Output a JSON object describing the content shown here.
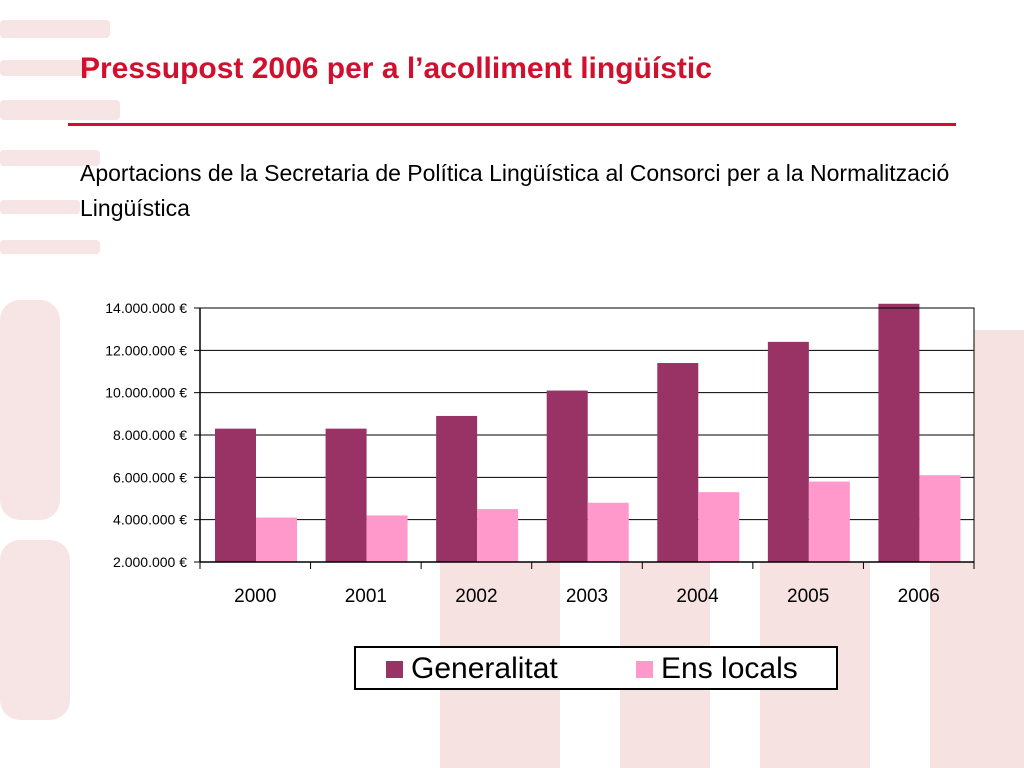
{
  "slide": {
    "title": "Pressupost 2006 per a l’acolliment lingüístic",
    "subtitle": "Aportacions de la Secretaria de Política Lingüística al Consorci per a la Normalització Lingüística"
  },
  "colors": {
    "title": "#d0102e",
    "generalitat": "#993366",
    "ens_locals": "#ff99cc",
    "watermark": "#f6e2e2"
  },
  "chart_data": {
    "type": "bar",
    "categories": [
      "2000",
      "2001",
      "2002",
      "2003",
      "2004",
      "2005",
      "2006"
    ],
    "series": [
      {
        "name": "Generalitat",
        "values": [
          8300000,
          8300000,
          8900000,
          10100000,
          11400000,
          12400000,
          14200000
        ]
      },
      {
        "name": "Ens locals",
        "values": [
          4100000,
          4200000,
          4500000,
          4800000,
          5300000,
          5800000,
          6100000
        ]
      }
    ],
    "yticks": [
      2000000,
      4000000,
      6000000,
      8000000,
      10000000,
      12000000,
      14000000
    ],
    "ytick_labels": [
      "2.000.000 €",
      "4.000.000 €",
      "6.000.000 €",
      "8.000.000 €",
      "10.000.000 €",
      "12.000.000 €",
      "14.000.000 €"
    ],
    "ylim": [
      2000000,
      14000000
    ],
    "grid": true,
    "legend_position": "bottom"
  }
}
